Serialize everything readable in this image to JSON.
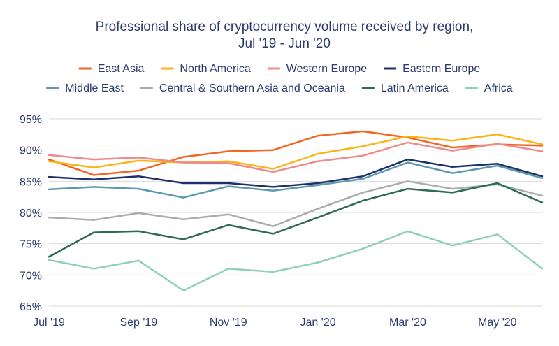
{
  "chart_data": {
    "type": "line",
    "title": "Professional share of cryptocurrency volume received by region,",
    "subtitle": "Jul '19 - Jun '20",
    "x": [
      "Jul '19",
      "Aug '19",
      "Sep '19",
      "Oct '19",
      "Nov '19",
      "Dec '19",
      "Jan '20",
      "Feb '20",
      "Mar '20",
      "Apr '20",
      "May '20",
      "Jun '20"
    ],
    "x_tick_labels": [
      "Jul '19",
      "Sep '19",
      "Nov '19",
      "Jan '20",
      "Mar '20",
      "May '20"
    ],
    "y_tick_labels": [
      "65%",
      "70%",
      "75%",
      "80%",
      "85%",
      "90%",
      "95%"
    ],
    "ylim": [
      65,
      95
    ],
    "grid": "horizontal",
    "legend_position": "top",
    "series": [
      {
        "name": "East Asia",
        "color": "#f26522",
        "values": [
          88.5,
          86.0,
          86.7,
          88.9,
          89.8,
          90.0,
          92.3,
          93.0,
          92.0,
          90.4,
          90.9,
          90.7
        ]
      },
      {
        "name": "North America",
        "color": "#fbb316",
        "values": [
          88.2,
          87.2,
          88.3,
          88.0,
          88.2,
          87.0,
          89.4,
          90.6,
          92.2,
          91.5,
          92.5,
          90.9
        ]
      },
      {
        "name": "Western Europe",
        "color": "#f08a8a",
        "values": [
          89.2,
          88.5,
          88.8,
          88.0,
          87.9,
          86.5,
          88.2,
          89.1,
          91.2,
          89.9,
          91.0,
          89.8
        ]
      },
      {
        "name": "Eastern Europe",
        "color": "#1f2f6b",
        "values": [
          85.7,
          85.3,
          85.8,
          84.7,
          84.7,
          84.1,
          84.7,
          85.8,
          88.5,
          87.3,
          87.8,
          85.8
        ]
      },
      {
        "name": "Middle East",
        "color": "#5b9aa8",
        "values": [
          83.7,
          84.1,
          83.8,
          82.4,
          84.2,
          83.5,
          84.4,
          85.4,
          88.0,
          86.3,
          87.5,
          85.5
        ]
      },
      {
        "name": "Central & Southern Asia and Oceania",
        "color": "#a9acb0",
        "values": [
          79.2,
          78.8,
          79.9,
          78.9,
          79.7,
          77.8,
          80.6,
          83.2,
          85.0,
          83.8,
          84.5,
          82.7
        ]
      },
      {
        "name": "Latin America",
        "color": "#2e6b55",
        "values": [
          72.9,
          76.8,
          77.0,
          75.7,
          78.0,
          76.6,
          79.2,
          81.9,
          83.8,
          83.2,
          84.7,
          81.6
        ]
      },
      {
        "name": "Africa",
        "color": "#8fd1b4",
        "values": [
          72.4,
          71.0,
          72.3,
          67.5,
          71.0,
          70.5,
          72.0,
          74.2,
          77.0,
          74.7,
          76.5,
          71.0
        ]
      }
    ]
  }
}
